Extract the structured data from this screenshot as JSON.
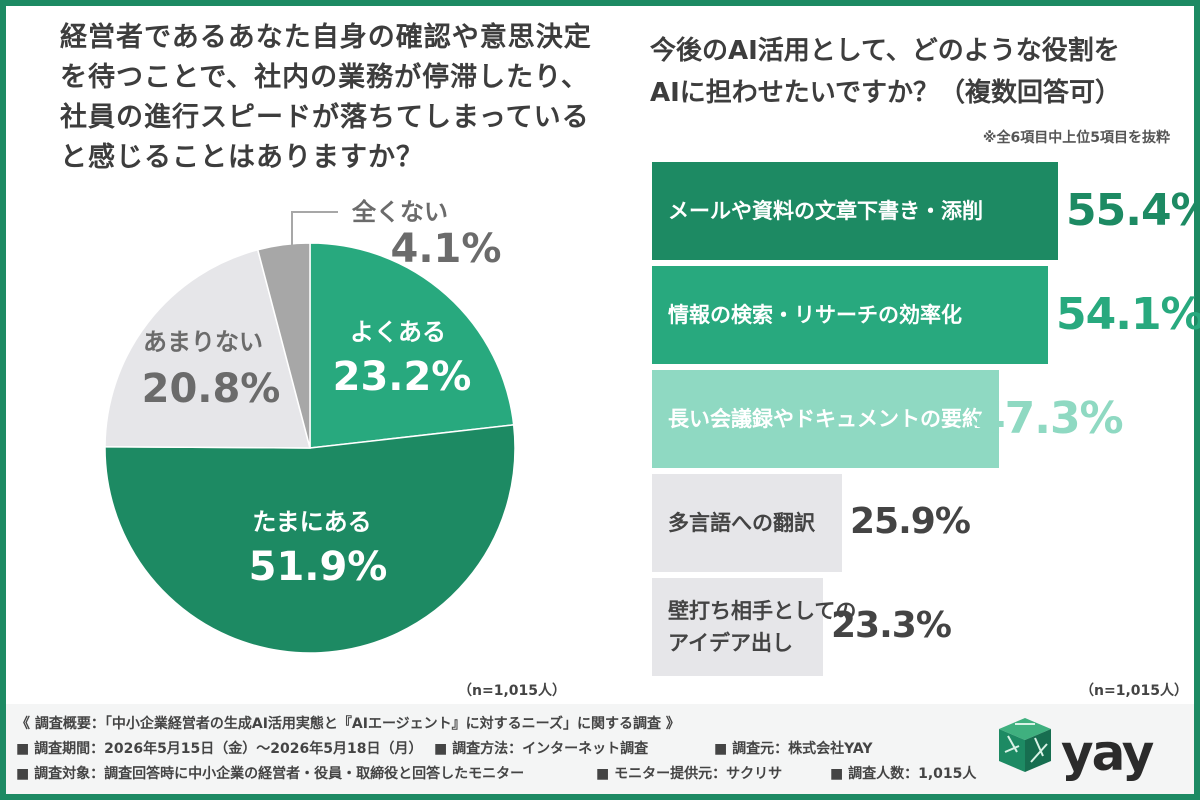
{
  "left": {
    "question": [
      "経営者であるあなた自身の確認や意思決定",
      "を待つことで、社内の業務が停滞したり、",
      "社員の進行スピードが落ちてしまっている",
      "と感じることはありますか？"
    ],
    "n_label": "（n=1,015人）"
  },
  "right": {
    "question": [
      "今後のAI活用として、どのような役割を",
      "AIに担わせたいですか？（複数回答可）"
    ],
    "note": "※全6項目中上位5項目を抜粋",
    "n_label": "（n=1,015人）"
  },
  "chart_data": [
    {
      "type": "pie",
      "labels": [
        "よくある",
        "たまにある",
        "あまりない",
        "全くない"
      ],
      "values": [
        23.2,
        51.9,
        20.8,
        4.1
      ],
      "value_labels": [
        "23.2%",
        "51.9%",
        "20.8%",
        "4.1%"
      ],
      "colors": [
        "#28a97e",
        "#1d8a63",
        "#e6e6e9",
        "#a7a7a7"
      ],
      "start": "top, clockwise"
    },
    {
      "type": "bar",
      "orientation": "horizontal",
      "categories": [
        [
          "メールや資料の文章下書き・添削"
        ],
        [
          "情報の検索・リサーチの効率化"
        ],
        [
          "長い会議録やドキュメントの要約"
        ],
        [
          "多言語への翻訳"
        ],
        [
          "壁打ち相手としての",
          "アイデア出し"
        ]
      ],
      "values": [
        55.4,
        54.1,
        47.3,
        25.9,
        23.3
      ],
      "value_labels": [
        "55.4%",
        "54.1%",
        "47.3%",
        "25.9%",
        "23.3%"
      ],
      "colors": [
        "#1d8a63",
        "#28a97e",
        "#8fd9c2",
        "#e6e6e9",
        "#e6e6e9"
      ],
      "label_colors": [
        "#ffffff",
        "#ffffff",
        "#ffffff",
        "#444444",
        "#444444"
      ],
      "value_colors": [
        "#1d8a63",
        "#28a97e",
        "#8fd9c2",
        "#444444",
        "#444444"
      ]
    }
  ],
  "footer": {
    "title": "《 調査概要：「中小企業経営者の生成AI活用実態と『AIエージェント』に対するニーズ」に関する調査 》",
    "period": "■ 調査期間：2026年5月15日（金）〜2026年5月18日（月）",
    "method": "■ 調査方法：インターネット調査",
    "source": "■ 調査元：株式会社YAY",
    "target": "■ 調査対象：調査回答時に中小企業の経営者・役員・取締役と回答したモニター",
    "provider": "■ モニター提供元：サクリサ",
    "count": "■ 調査人数：1,015人"
  },
  "logo": {
    "text": "YAY",
    "icon": "cube-logo-icon"
  }
}
